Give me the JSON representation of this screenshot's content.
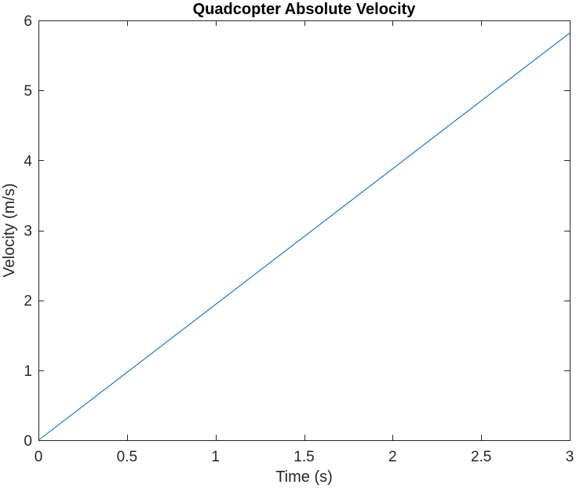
{
  "chart_data": {
    "type": "line",
    "title": "Quadcopter Absolute Velocity",
    "xlabel": "Time (s)",
    "ylabel": "Velocity (m/s)",
    "xlim": [
      0,
      3
    ],
    "ylim": [
      0,
      6
    ],
    "xticks": [
      0,
      0.5,
      1,
      1.5,
      2,
      2.5,
      3
    ],
    "xtick_labels": [
      "0",
      "0.5",
      "1",
      "1.5",
      "2",
      "2.5",
      "3"
    ],
    "yticks": [
      0,
      1,
      2,
      3,
      4,
      5,
      6
    ],
    "ytick_labels": [
      "0",
      "1",
      "2",
      "3",
      "4",
      "5",
      "6"
    ],
    "grid": false,
    "series": [
      {
        "color": "#0072BD",
        "x": [
          0,
          3
        ],
        "y": [
          0,
          5.82
        ]
      }
    ]
  }
}
